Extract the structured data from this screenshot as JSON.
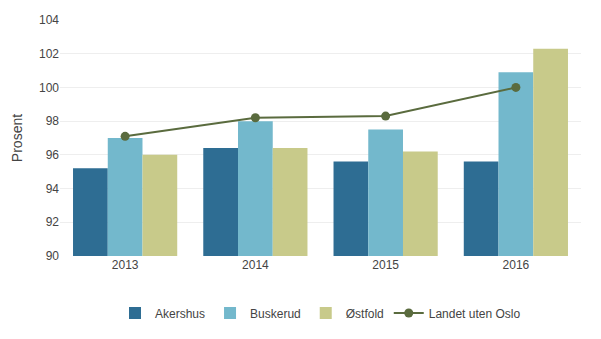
{
  "chart_data": {
    "type": "bar",
    "categories": [
      "2013",
      "2014",
      "2015",
      "2016"
    ],
    "series": [
      {
        "name": "Akershus",
        "color": "#2e6d93",
        "values": [
          95.2,
          96.4,
          95.6,
          95.6
        ]
      },
      {
        "name": "Buskerud",
        "color": "#73b8cc",
        "values": [
          97.0,
          98.0,
          97.5,
          100.9
        ]
      },
      {
        "name": "Østfold",
        "color": "#c8ca8a",
        "values": [
          96.0,
          96.4,
          96.2,
          102.3
        ]
      },
      {
        "name": "Landet uten Oslo",
        "type": "line",
        "marker": "circle",
        "color": "#5a6b3e",
        "values": [
          97.1,
          98.2,
          98.3,
          100.0
        ]
      }
    ],
    "ylabel": "Prosent",
    "ylim": [
      90,
      104
    ],
    "yticks": [
      90,
      92,
      94,
      96,
      98,
      100,
      102,
      104
    ],
    "grid": true,
    "legend": "bottom"
  }
}
